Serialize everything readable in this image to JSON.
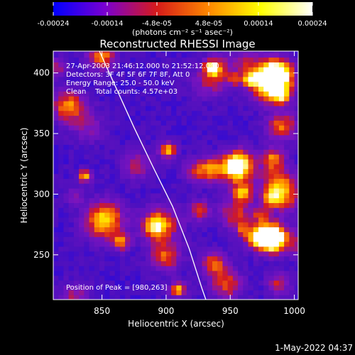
{
  "colorbar": {
    "ticks": [
      "-0.00024",
      "-0.00014",
      "-4.8e-05",
      "4.8e-05",
      "0.00014",
      "0.00024"
    ],
    "tick_values": [
      -0.00024,
      -0.00014,
      -4.8e-05,
      4.8e-05,
      0.00014,
      0.00024
    ],
    "range": [
      -0.00024,
      0.00024
    ],
    "units": "(photons cm⁻² s⁻¹ asec⁻²)",
    "colors": [
      "#0000ff",
      "#7a00d0",
      "#d61a1a",
      "#ff8800",
      "#ffff00",
      "#ffffff"
    ]
  },
  "chart_data": {
    "type": "heatmap",
    "title": "Reconstructed RHESSI Image",
    "xlabel": "Heliocentric X (arcsec)",
    "ylabel": "Heliocentric Y (arcsec)",
    "xlim": [
      812,
      1003
    ],
    "ylim": [
      213,
      418
    ],
    "xticks": [
      850,
      900,
      950,
      1000
    ],
    "yticks": [
      250,
      300,
      350,
      400
    ],
    "info_lines": [
      "27-Apr-2003 21:46:12.000 to 21:52:12.000",
      "Detectors: 3F 4F 5F 6F 7F 8F, Att 0",
      "Energy Range: 25.0 - 50.0 keV",
      "Clean    Total counts: 4.57e+03"
    ],
    "peak_label": "Position of Peak = [980,263]",
    "peak": [
      980,
      263
    ],
    "limb_curve": [
      [
        848,
        418
      ],
      [
        860,
        390
      ],
      [
        875,
        355
      ],
      [
        890,
        322
      ],
      [
        905,
        290
      ],
      [
        918,
        255
      ],
      [
        928,
        222
      ],
      [
        931,
        213
      ]
    ],
    "pixel_size_arcsec": 4,
    "pattern_seed": 7
  },
  "footer": {
    "date": "1-May-2022 04:37"
  }
}
